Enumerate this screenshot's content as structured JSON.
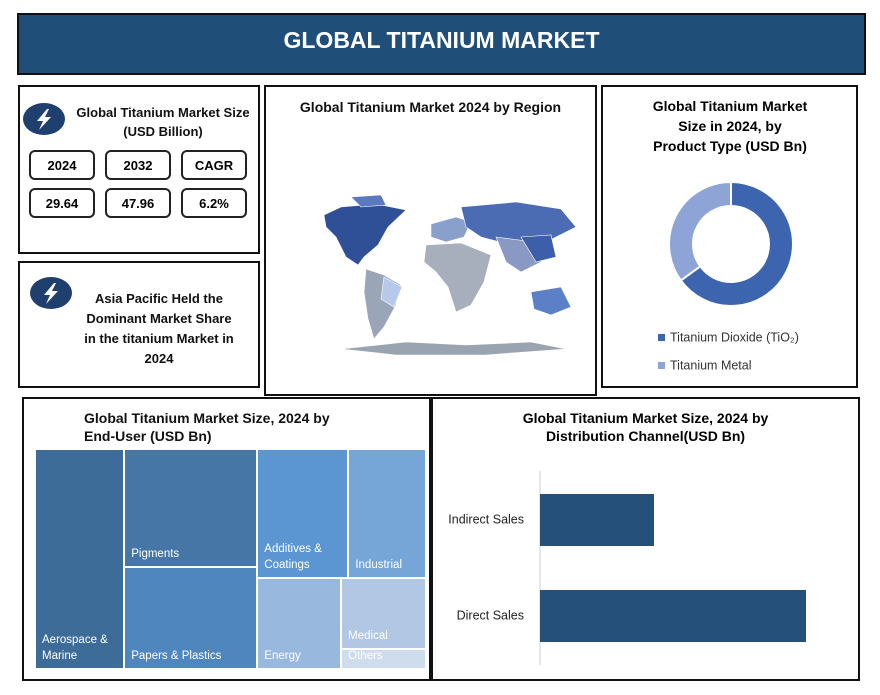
{
  "header": {
    "title": "GLOBAL TITANIUM MARKET"
  },
  "market_size": {
    "title": "Global Titanium Market Size (USD Billion)",
    "headers": [
      "2024",
      "2032",
      "CAGR"
    ],
    "values": [
      "29.64",
      "47.96",
      "6.2%"
    ]
  },
  "highlight": {
    "text": "Asia Pacific Held the Dominant Market Share in the titanium Market in 2024"
  },
  "map": {
    "title": "Global Titanium Market 2024 by Region"
  },
  "chart_data": [
    {
      "type": "donut",
      "title": "Global Titanium Market Size in 2024,  by Product Type (USD Bn)",
      "categories": [
        "Titanium Dioxide (TiO₂)",
        "Titanium Metal"
      ],
      "values": [
        65,
        35
      ],
      "colors": [
        "#3d64ae",
        "#8ea4d6"
      ]
    },
    {
      "type": "treemap",
      "title": "Global Titanium Market Size, 2024 by End-User (USD Bn)",
      "categories": [
        "Aerospace & Marine",
        "Pigments",
        "Papers & Plastics",
        "Additives & Coatings",
        "Industrial",
        "Energy",
        "Medical",
        "Others"
      ],
      "values": [
        22.8,
        18.3,
        15.7,
        13.6,
        11.6,
        8.9,
        7.0,
        2.0
      ],
      "colors": [
        "#3e6c98",
        "#4676a6",
        "#4f86bd",
        "#5b96d2",
        "#76a6d8",
        "#98b8de",
        "#b1c7e3",
        "#cfdcee"
      ]
    },
    {
      "type": "hbar",
      "title": "Global Titanium Market Size, 2024 by Distribution Channel(USD Bn)",
      "categories": [
        "Indirect Sales",
        "Direct Sales"
      ],
      "values": [
        30,
        70
      ],
      "color": "#24507a"
    }
  ]
}
